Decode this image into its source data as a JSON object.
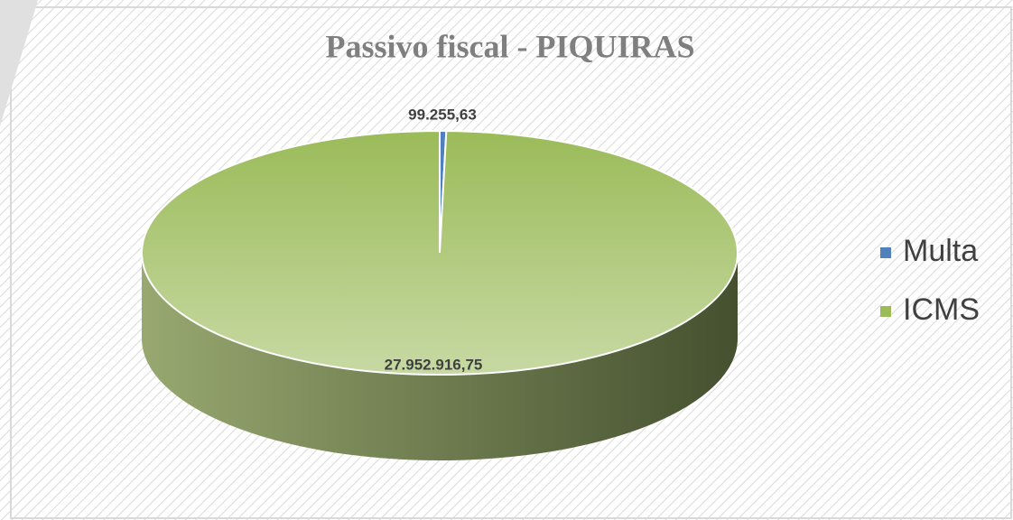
{
  "chart_data": {
    "type": "pie",
    "title": "Passivo fiscal - PIQUIRAS",
    "categories": [
      "Multa",
      "ICMS"
    ],
    "values": [
      99255.63,
      27952916.75
    ],
    "value_labels": [
      "99.255,63",
      "27.952.916,75"
    ],
    "colors": [
      "#4f81bd",
      "#9bbb59"
    ],
    "legend": "right"
  }
}
